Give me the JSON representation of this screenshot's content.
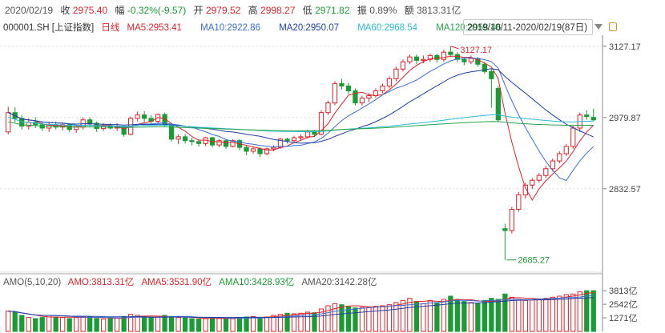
{
  "quote": {
    "date": "2020/02/19",
    "close_label": "收",
    "close": "2975.40",
    "change_label": "幅",
    "change": "-0.32%(-9.57)",
    "open_label": "开",
    "open": "2979.52",
    "high_label": "高",
    "high": "2998.27",
    "low_label": "低",
    "low": "2971.82",
    "amp_label": "振",
    "amp": "0.89%",
    "amount_label": "额",
    "amount": "3813.31亿"
  },
  "ma_line": {
    "symbol": "000001.SH",
    "name": "[上证指数]",
    "period": "日线",
    "ma5": "MA5:2953.41",
    "ma10": "MA10:2922.86",
    "ma20": "MA20:2950.07",
    "ma60": "MA60:2968.54",
    "ma120": "MA120:2958.46",
    "range": "2019/10/11-2020/02/19(87日)"
  },
  "amo_line": {
    "title": "AMO(5,10,20)",
    "amo": "AMO:3813.31亿",
    "ma5": "AMA5:3531.90亿",
    "ma10": "AMA10:3428.93亿",
    "ma20": "AMA20:3142.28亿"
  },
  "colors": {
    "up": "#e0232a",
    "down": "#1a9b35",
    "ma5": "#e0232a",
    "ma10": "#3a6fd8",
    "ma20": "#1f3fa8",
    "ma60": "#2bbdd6",
    "ma120": "#2aa34a",
    "grid": "#dcdcdc"
  },
  "chart_data": {
    "type": "candlestick",
    "price_axis": {
      "ticks": [
        "3127.17",
        "2979.87",
        "2832.57"
      ],
      "ylim": [
        2660,
        3150
      ]
    },
    "volume_axis": {
      "ticks": [
        "3813亿",
        "2542亿",
        "1271亿"
      ],
      "ylim": [
        0,
        3900
      ]
    },
    "annotations": {
      "high": "3127.17",
      "low": "2685.27"
    },
    "candles": [
      [
        2950,
        2990,
        3002,
        2945
      ],
      [
        2990,
        2978,
        3001,
        2970
      ],
      [
        2978,
        2962,
        2985,
        2955
      ],
      [
        2962,
        2970,
        2978,
        2955
      ],
      [
        2970,
        2965,
        2980,
        2958
      ],
      [
        2965,
        2958,
        2972,
        2952
      ],
      [
        2958,
        2965,
        2970,
        2950
      ],
      [
        2965,
        2960,
        2972,
        2955
      ],
      [
        2960,
        2965,
        2970,
        2953
      ],
      [
        2965,
        2955,
        2968,
        2950
      ],
      [
        2955,
        2960,
        2965,
        2948
      ],
      [
        2960,
        2975,
        2980,
        2955
      ],
      [
        2975,
        2968,
        2980,
        2960
      ],
      [
        2968,
        2957,
        2972,
        2950
      ],
      [
        2957,
        2962,
        2968,
        2952
      ],
      [
        2962,
        2958,
        2968,
        2955
      ],
      [
        2958,
        2960,
        2968,
        2952
      ],
      [
        2960,
        2945,
        2963,
        2940
      ],
      [
        2945,
        2978,
        2982,
        2943
      ],
      [
        2978,
        2985,
        2992,
        2972
      ],
      [
        2985,
        2978,
        2993,
        2970
      ],
      [
        2978,
        2972,
        2985,
        2966
      ],
      [
        2972,
        2986,
        2988,
        2968
      ],
      [
        2986,
        2965,
        2990,
        2960
      ],
      [
        2965,
        2935,
        2968,
        2930
      ],
      [
        2935,
        2940,
        2945,
        2925
      ],
      [
        2940,
        2932,
        2946,
        2926
      ],
      [
        2932,
        2930,
        2938,
        2922
      ],
      [
        2930,
        2926,
        2935,
        2920
      ],
      [
        2926,
        2938,
        2940,
        2921
      ],
      [
        2938,
        2923,
        2940,
        2918
      ],
      [
        2923,
        2932,
        2935,
        2918
      ],
      [
        2932,
        2920,
        2935,
        2915
      ],
      [
        2920,
        2932,
        2935,
        2918
      ],
      [
        2932,
        2918,
        2935,
        2912
      ],
      [
        2918,
        2910,
        2922,
        2902
      ],
      [
        2910,
        2915,
        2920,
        2905
      ],
      [
        2915,
        2905,
        2918,
        2898
      ],
      [
        2905,
        2915,
        2918,
        2902
      ],
      [
        2915,
        2918,
        2922,
        2910
      ],
      [
        2918,
        2935,
        2938,
        2915
      ],
      [
        2935,
        2932,
        2938,
        2926
      ],
      [
        2932,
        2938,
        2942,
        2928
      ],
      [
        2938,
        2940,
        2945,
        2932
      ],
      [
        2940,
        2950,
        2955,
        2936
      ],
      [
        2950,
        2945,
        2954,
        2940
      ],
      [
        2945,
        2990,
        2995,
        2943
      ],
      [
        2990,
        3010,
        3015,
        2985
      ],
      [
        3010,
        3050,
        3055,
        3005
      ],
      [
        3050,
        3045,
        3060,
        3038
      ],
      [
        3045,
        3035,
        3052,
        3028
      ],
      [
        3035,
        3010,
        3040,
        3005
      ],
      [
        3010,
        3020,
        3025,
        3005
      ],
      [
        3020,
        3025,
        3030,
        3012
      ],
      [
        3025,
        3035,
        3040,
        3020
      ],
      [
        3035,
        3045,
        3050,
        3030
      ],
      [
        3045,
        3060,
        3065,
        3040
      ],
      [
        3060,
        3080,
        3085,
        3055
      ],
      [
        3080,
        3095,
        3100,
        3075
      ],
      [
        3095,
        3105,
        3110,
        3090
      ],
      [
        3105,
        3098,
        3110,
        3090
      ],
      [
        3098,
        3100,
        3108,
        3092
      ],
      [
        3100,
        3108,
        3112,
        3095
      ],
      [
        3108,
        3100,
        3112,
        3094
      ],
      [
        3100,
        3115,
        3120,
        3095
      ],
      [
        3115,
        3110,
        3127.17,
        3105
      ],
      [
        3110,
        3100,
        3115,
        3095
      ],
      [
        3100,
        3095,
        3105,
        3088
      ],
      [
        3095,
        3102,
        3108,
        3090
      ],
      [
        3102,
        3090,
        3105,
        3085
      ],
      [
        3090,
        3075,
        3095,
        3070
      ],
      [
        3075,
        3060,
        3080,
        3000
      ],
      [
        3040,
        2975,
        3045,
        2970
      ],
      [
        2750,
        2746,
        2760,
        2685.27
      ],
      [
        2746,
        2790,
        2795,
        2740
      ],
      [
        2790,
        2820,
        2826,
        2785
      ],
      [
        2820,
        2840,
        2845,
        2812
      ],
      [
        2840,
        2850,
        2855,
        2832
      ],
      [
        2850,
        2860,
        2865,
        2845
      ],
      [
        2860,
        2874,
        2880,
        2855
      ],
      [
        2874,
        2890,
        2895,
        2868
      ],
      [
        2890,
        2905,
        2910,
        2885
      ],
      [
        2905,
        2920,
        2925,
        2900
      ],
      [
        2920,
        2958,
        2963,
        2915
      ],
      [
        2958,
        2985,
        2990,
        2950
      ],
      [
        2985,
        2982,
        2995,
        2975
      ],
      [
        2980,
        2975,
        2998.27,
        2971.82
      ]
    ],
    "volumes": [
      1900,
      1800,
      1500,
      1300,
      1200,
      1300,
      1500,
      1350,
      1300,
      1200,
      1300,
      1400,
      1350,
      1200,
      1150,
      1200,
      1250,
      1400,
      1600,
      1500,
      1400,
      1300,
      1350,
      1500,
      1400,
      1300,
      1250,
      1200,
      1150,
      1200,
      1300,
      1250,
      1150,
      1200,
      1300,
      1350,
      1400,
      1300,
      1350,
      1500,
      1600,
      1700,
      1650,
      1700,
      1800,
      1750,
      2100,
      2400,
      2600,
      2500,
      2300,
      2200,
      2250,
      2300,
      2350,
      2400,
      2500,
      2700,
      2900,
      3100,
      2800,
      2600,
      2900,
      2700,
      3000,
      3300,
      3000,
      2800,
      2700,
      2600,
      2900,
      3100,
      3000,
      3500,
      3200,
      3000,
      2900,
      2950,
      3050,
      3100,
      3200,
      3300,
      3450,
      3500,
      3700,
      3813,
      3813
    ],
    "ma_params": [
      5,
      10,
      20,
      60,
      120
    ]
  }
}
